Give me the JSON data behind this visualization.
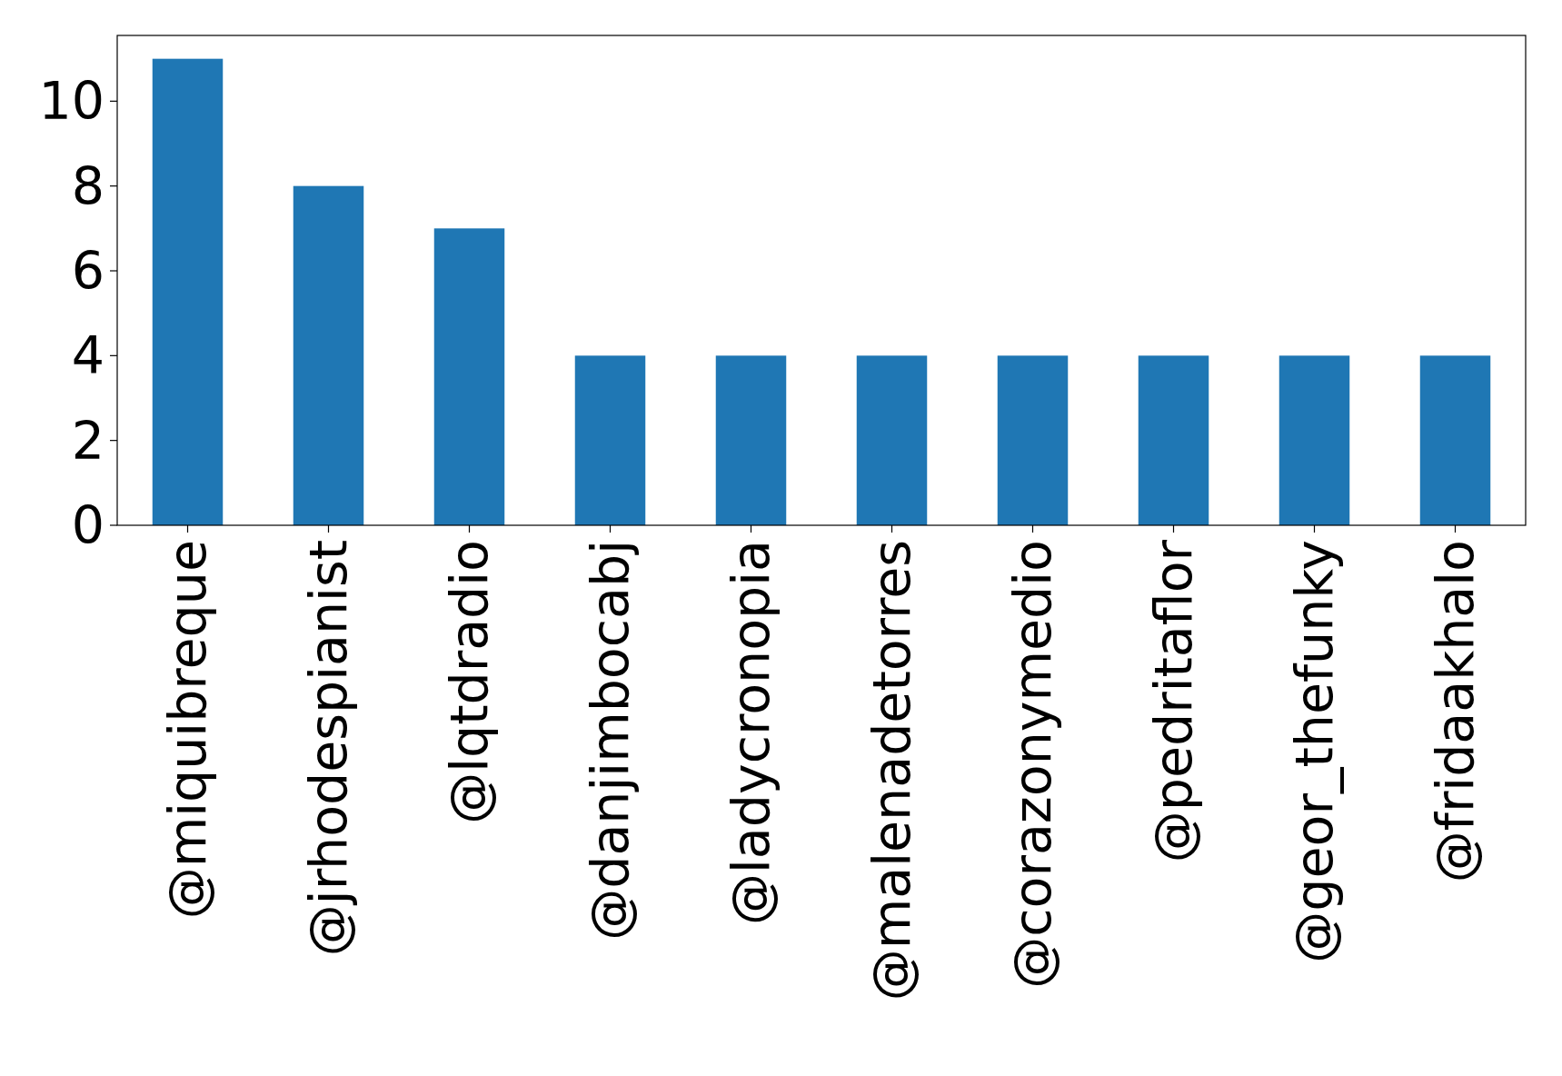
{
  "chart_data": {
    "type": "bar",
    "categories": [
      "@miquibreque",
      "@jrhodespianist",
      "@lqtdradio",
      "@danjimbocabj",
      "@ladycronopia",
      "@malenadetorres",
      "@corazonymedio",
      "@pedritaflor",
      "@geor_thefunky",
      "@fridaakhalo"
    ],
    "values": [
      11,
      8,
      7,
      4,
      4,
      4,
      4,
      4,
      4,
      4
    ],
    "color": "#1f77b4",
    "ylim": [
      0,
      11.55
    ],
    "yticks": [
      0,
      2,
      4,
      6,
      8,
      10
    ],
    "grid": false
  }
}
